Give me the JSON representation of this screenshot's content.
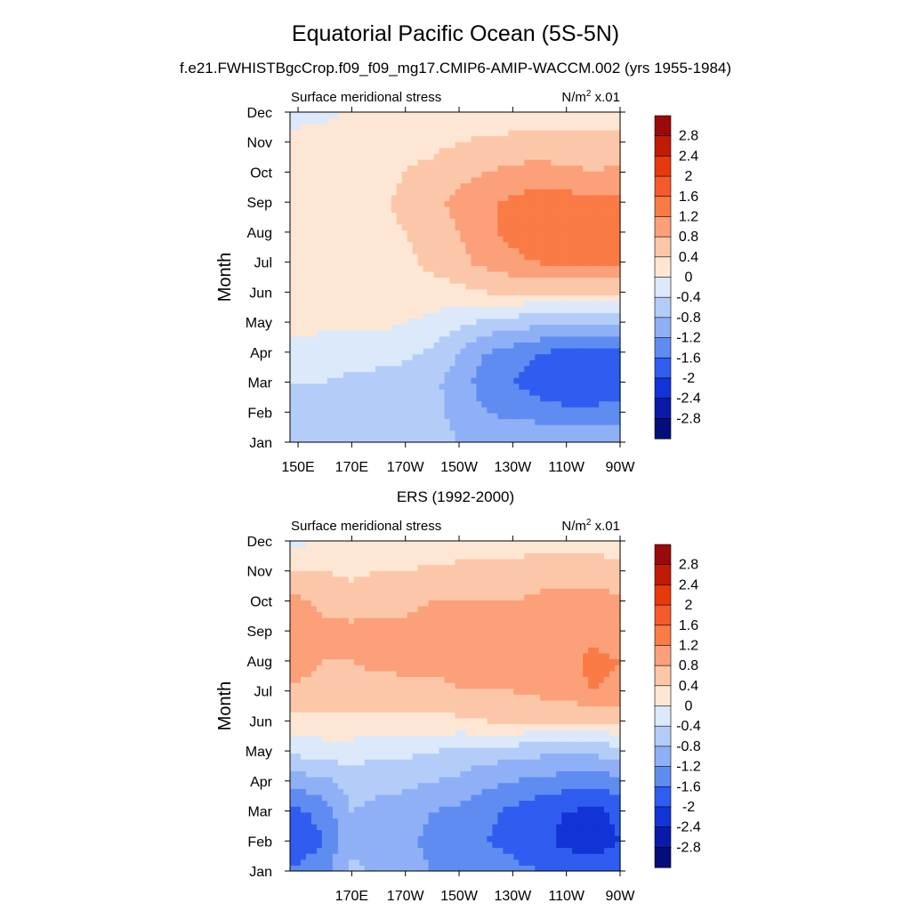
{
  "page": {
    "title": "Equatorial Pacific Ocean (5S-5N)",
    "subtitle": "f.e21.FWHISTBgcCrop.f09_f09_mg17.CMIP6-AMIP-WACCM.002 (yrs 1955-1984)"
  },
  "colorbar": {
    "levels": [
      "2.8",
      "2.4",
      "2",
      "1.6",
      "1.2",
      "0.8",
      "0.4",
      "0",
      "-0.4",
      "-0.8",
      "-1.2",
      "-1.6",
      "-2",
      "-2.4",
      "-2.8"
    ],
    "colors": [
      "#9a0a0a",
      "#c11a05",
      "#e63a0c",
      "#f55a2a",
      "#fa7b45",
      "#fba079",
      "#fcc7a8",
      "#fde7d4",
      "#dbe9fb",
      "#b4cdf8",
      "#8fb0f6",
      "#5e8cf1",
      "#2f5df0",
      "#1234d6",
      "#0a1aa8",
      "#050d7a"
    ]
  },
  "chart_data": [
    {
      "type": "heatmap",
      "title": "",
      "header": "",
      "left_label": "Surface meridional stress",
      "right_label_base": "N/m",
      "right_label_exp": "2",
      "right_label_scale": " x.01",
      "ylabel": "Month",
      "xlabel": "",
      "x_ticks": [
        "150E",
        "170E",
        "170W",
        "150W",
        "130W",
        "110W",
        "90W"
      ],
      "x_ticks_pos": [
        150,
        170,
        190,
        210,
        230,
        250,
        270
      ],
      "y_ticks": [
        "Jan",
        "Feb",
        "Mar",
        "Apr",
        "May",
        "Jun",
        "Jul",
        "Aug",
        "Sep",
        "Oct",
        "Nov",
        "Dec"
      ],
      "x": [
        150,
        160,
        170,
        180,
        190,
        200,
        210,
        220,
        230,
        240,
        250,
        260,
        270
      ],
      "xlim": [
        147,
        270
      ],
      "ylim": [
        1,
        12
      ],
      "z": [
        [
          -0.7,
          -0.7,
          -0.7,
          -0.7,
          -0.7,
          -0.7,
          -0.8,
          -0.8,
          -0.8,
          -0.8,
          -0.8,
          -0.9,
          -0.9
        ],
        [
          -0.5,
          -0.6,
          -0.6,
          -0.6,
          -0.7,
          -0.7,
          -0.9,
          -1.2,
          -1.3,
          -1.4,
          -1.5,
          -1.5,
          -1.4
        ],
        [
          -0.4,
          -0.4,
          -0.5,
          -0.5,
          -0.6,
          -0.7,
          -1.0,
          -1.4,
          -1.6,
          -1.8,
          -1.9,
          -1.9,
          -1.9
        ],
        [
          -0.1,
          -0.2,
          -0.2,
          -0.3,
          -0.3,
          -0.5,
          -0.8,
          -1.2,
          -1.4,
          -1.6,
          -1.7,
          -1.7,
          -1.7
        ],
        [
          0.1,
          0.1,
          0.1,
          0.1,
          0.0,
          -0.1,
          -0.3,
          -0.5,
          -0.6,
          -0.7,
          -0.7,
          -0.7,
          -0.7
        ],
        [
          0.2,
          0.2,
          0.2,
          0.2,
          0.2,
          0.2,
          0.3,
          0.4,
          0.4,
          0.4,
          0.4,
          0.4,
          0.4
        ],
        [
          0.3,
          0.2,
          0.2,
          0.3,
          0.3,
          0.5,
          0.7,
          0.9,
          1.1,
          1.2,
          1.3,
          1.3,
          1.2
        ],
        [
          0.3,
          0.2,
          0.2,
          0.3,
          0.4,
          0.6,
          0.8,
          1.1,
          1.3,
          1.5,
          1.6,
          1.6,
          1.6
        ],
        [
          0.3,
          0.2,
          0.3,
          0.3,
          0.5,
          0.7,
          0.9,
          1.1,
          1.3,
          1.4,
          1.4,
          1.3,
          1.3
        ],
        [
          0.1,
          0.2,
          0.2,
          0.3,
          0.4,
          0.5,
          0.7,
          0.8,
          0.9,
          1.0,
          0.9,
          0.8,
          0.9
        ],
        [
          0.1,
          0.2,
          0.2,
          0.2,
          0.3,
          0.3,
          0.4,
          0.5,
          0.5,
          0.5,
          0.5,
          0.5,
          0.5
        ],
        [
          -0.1,
          -0.1,
          0.1,
          0.1,
          0.1,
          0.1,
          0.1,
          0.1,
          0.2,
          0.2,
          0.2,
          0.2,
          0.2
        ]
      ]
    },
    {
      "type": "heatmap",
      "title": "",
      "header": "ERS (1992-2000)",
      "left_label": "Surface meridional stress",
      "right_label_base": "N/m",
      "right_label_exp": "2",
      "right_label_scale": " x.01",
      "ylabel": "Month",
      "xlabel": "",
      "x_ticks": [
        "170E",
        "170W",
        "150W",
        "130W",
        "110W",
        "90W"
      ],
      "x_ticks_pos": [
        170,
        190,
        210,
        230,
        250,
        270
      ],
      "y_ticks": [
        "Jan",
        "Feb",
        "Mar",
        "Apr",
        "May",
        "Jun",
        "Jul",
        "Aug",
        "Sep",
        "Oct",
        "Nov",
        "Dec"
      ],
      "x": [
        150,
        160,
        170,
        180,
        190,
        200,
        210,
        220,
        230,
        240,
        250,
        260,
        270
      ],
      "xlim": [
        147,
        270
      ],
      "ylim": [
        1,
        12
      ],
      "z": [
        [
          -1.5,
          -1.3,
          -0.7,
          -0.9,
          -1.0,
          -1.2,
          -1.3,
          -1.4,
          -1.5,
          -1.6,
          -1.7,
          -1.8,
          -1.6
        ],
        [
          -1.9,
          -1.6,
          -0.9,
          -1.0,
          -1.1,
          -1.3,
          -1.4,
          -1.6,
          -1.7,
          -1.9,
          -2.1,
          -2.2,
          -2.0
        ],
        [
          -1.7,
          -1.4,
          -0.8,
          -0.9,
          -1.0,
          -1.2,
          -1.3,
          -1.5,
          -1.7,
          -1.9,
          -2.0,
          -2.1,
          -1.9
        ],
        [
          -1.0,
          -0.9,
          -0.6,
          -0.7,
          -0.7,
          -0.8,
          -0.9,
          -1.1,
          -1.2,
          -1.3,
          -1.4,
          -1.5,
          -1.3
        ],
        [
          -0.3,
          -0.2,
          -0.2,
          -0.3,
          -0.3,
          -0.4,
          -0.5,
          -0.6,
          -0.6,
          -0.7,
          -0.7,
          -0.7,
          -0.6
        ],
        [
          0.2,
          0.3,
          0.3,
          0.3,
          0.3,
          0.3,
          0.3,
          0.4,
          0.4,
          0.4,
          0.4,
          0.4,
          0.4
        ],
        [
          0.7,
          0.6,
          0.6,
          0.6,
          0.7,
          0.7,
          0.8,
          0.8,
          0.8,
          0.9,
          1.0,
          1.2,
          1.1
        ],
        [
          1.0,
          0.8,
          0.8,
          0.9,
          0.9,
          0.9,
          0.9,
          0.9,
          0.9,
          0.9,
          1.1,
          1.3,
          1.2
        ],
        [
          1.2,
          0.9,
          0.9,
          0.9,
          0.9,
          1.0,
          1.0,
          1.0,
          1.0,
          1.0,
          1.0,
          1.1,
          1.0
        ],
        [
          0.9,
          0.7,
          0.6,
          0.7,
          0.7,
          0.8,
          0.8,
          0.8,
          0.8,
          0.9,
          0.9,
          1.0,
          0.9
        ],
        [
          0.4,
          0.4,
          0.3,
          0.4,
          0.4,
          0.5,
          0.5,
          0.5,
          0.5,
          0.6,
          0.6,
          0.6,
          0.5
        ],
        [
          -0.1,
          0.1,
          0.1,
          0.1,
          0.1,
          0.1,
          0.2,
          0.2,
          0.2,
          0.3,
          0.3,
          0.3,
          0.2
        ]
      ]
    }
  ]
}
